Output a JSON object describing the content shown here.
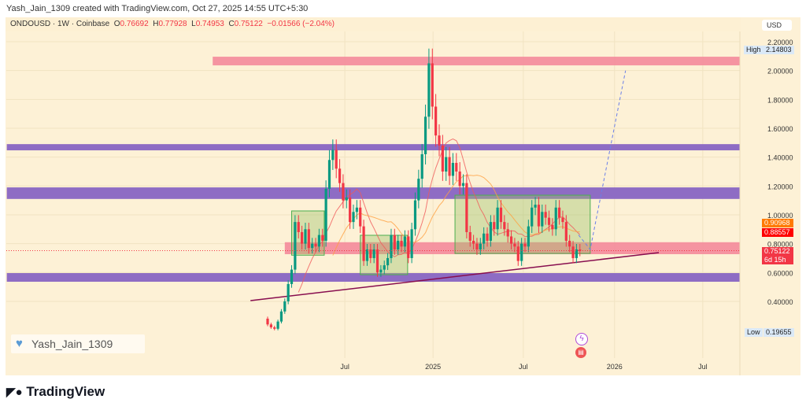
{
  "credit": "Yash_Jain_1309 created with TradingView.com, Oct 27, 2025 14:55 UTC+5:30",
  "legend": {
    "symbol": "ONDOUSD · 1W · Coinbase",
    "o_label": "O",
    "o": "0.76692",
    "h_label": "H",
    "h": "0.77928",
    "l_label": "L",
    "l": "0.74953",
    "c_label": "C",
    "c": "0.75122",
    "change": "−0.01566 (−2.04%)"
  },
  "currency": "USD",
  "high_tag": {
    "label": "High",
    "value": "2.14803"
  },
  "low_tag": {
    "label": "Low",
    "value": "0.19655"
  },
  "price_tags": {
    "ma_orange": "0.90968",
    "ma_red": "0.88557",
    "last": "0.75122",
    "countdown": "6d 15h"
  },
  "watermark": "Yash_Jain_1309",
  "brand": "TradingView",
  "colors": {
    "up": "#089981",
    "down": "#f23645",
    "purple": "#8e6cc4",
    "pink": "#f4899b",
    "box": "#c8dca8"
  },
  "chart_data": {
    "type": "candlestick",
    "title": "ONDOUSD 1W Coinbase",
    "ylim": [
      0.1,
      2.3
    ],
    "yticks": [
      "2.20000",
      "2.00000",
      "1.80000",
      "1.60000",
      "1.40000",
      "1.20000",
      "1.00000",
      "0.80000",
      "0.60000",
      "0.40000"
    ],
    "xticks": [
      {
        "label": "Jul",
        "week": 22.5
      },
      {
        "label": "2025",
        "week": 48.2
      },
      {
        "label": "Jul",
        "week": 74.5
      },
      {
        "label": "2026",
        "week": 101.1
      },
      {
        "label": "Jul",
        "week": 126.8
      }
    ],
    "first_open": 0.28,
    "close": [
      0.24,
      0.22,
      0.21,
      0.26,
      0.33,
      0.4,
      0.52,
      0.62,
      0.95,
      0.88,
      0.8,
      0.9,
      0.77,
      0.8,
      0.78,
      0.86,
      0.82,
      1.18,
      1.38,
      1.45,
      1.32,
      1.22,
      1.1,
      1.12,
      0.95,
      1.02,
      1.05,
      0.92,
      0.68,
      0.76,
      0.7,
      0.76,
      0.6,
      0.62,
      0.65,
      0.7,
      0.86,
      0.76,
      0.82,
      0.78,
      0.85,
      0.7,
      0.9,
      1.1,
      1.25,
      1.42,
      1.68,
      2.05,
      1.75,
      1.55,
      1.48,
      1.3,
      1.4,
      1.27,
      1.36,
      1.3,
      1.2,
      1.22,
      0.88,
      0.82,
      0.8,
      0.76,
      0.8,
      0.87,
      0.82,
      0.95,
      0.9,
      1.05,
      0.95,
      0.9,
      0.85,
      0.8,
      0.78,
      0.68,
      0.8,
      0.78,
      0.92,
      1.05,
      1.07,
      0.92,
      1.02,
      0.98,
      0.93,
      0.9,
      1.05,
      0.98,
      0.95,
      0.82,
      0.78,
      0.7,
      0.76,
      0.75
    ],
    "zones": [
      {
        "from": 2.036,
        "to": 2.096,
        "color": "pink",
        "start_week": -16
      },
      {
        "from": 1.447,
        "to": 1.49,
        "color": "purple",
        "start_week": -76
      },
      {
        "from": 1.11,
        "to": 1.19,
        "color": "purple",
        "start_week": -76
      },
      {
        "from": 0.727,
        "to": 0.81,
        "color": "pink",
        "start_week": 5
      },
      {
        "from": 0.536,
        "to": 0.596,
        "color": "purple",
        "start_week": -76
      }
    ],
    "boxes": [
      {
        "w0": 7,
        "w1": 16.5,
        "lo": 0.72,
        "hi": 1.027
      },
      {
        "w0": 27,
        "w1": 40.8,
        "lo": 0.585,
        "hi": 0.858
      },
      {
        "w0": 54.6,
        "w1": 94,
        "lo": 0.732,
        "hi": 1.136
      }
    ],
    "trendline": [
      {
        "week": -5,
        "price": 0.405
      },
      {
        "week": 114,
        "price": 0.738
      }
    ],
    "projection": [
      {
        "week": 90.6,
        "price": 0.86
      },
      {
        "week": 94,
        "price": 0.76
      },
      {
        "week": 104.3,
        "price": 2.0
      }
    ],
    "ma_periods": [
      10,
      20
    ]
  }
}
